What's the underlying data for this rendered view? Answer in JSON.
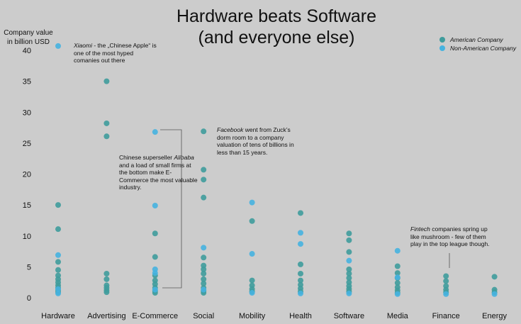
{
  "title_line1": "Hardware beats Software",
  "title_line2": "(and everyone else)",
  "ylabel_line1": "Company value",
  "ylabel_line2": "in billion USD",
  "legend": {
    "american": "American Company",
    "non_american": "Non-American Company",
    "american_color": "#3f9c9c",
    "non_american_color": "#46b3e0"
  },
  "annotations": {
    "xiaomi_name": "Xiaomi",
    "xiaomi_text": " - the „Chinese Apple“ is one of the most hyped comanies out there",
    "alibaba_pre": "Chinese superseller ",
    "alibaba_name": "Alibaba",
    "alibaba_text": " and a load of small firms at the bottom make E-Commerce the most valuable industry.",
    "facebook_name": "Facebook",
    "facebook_text": " went from Zuck’s dorm room to a company valuation of tens of billions in less than 15 years.",
    "fintech_name": "Fintech",
    "fintech_text": " companies spring up like mushroom - few of them play in the top league though."
  },
  "chart_data": {
    "type": "scatter",
    "title": "Hardware beats Software (and everyone else)",
    "ylabel": "Company value in billion USD",
    "xlabel": "",
    "ylim": [
      0,
      40
    ],
    "yticks": [
      0,
      5,
      10,
      15,
      20,
      25,
      30,
      35,
      40
    ],
    "grid": false,
    "legend_position": "top-right",
    "categories": [
      "Hardware",
      "Advertising",
      "E-Commerce",
      "Social",
      "Mobility",
      "Health",
      "Software",
      "Media",
      "Finance",
      "Energy"
    ],
    "series": [
      {
        "name": "American Company",
        "color": "#3f9c9c",
        "points": [
          {
            "x": "Hardware",
            "y": 15.0
          },
          {
            "x": "Hardware",
            "y": 11.1
          },
          {
            "x": "Hardware",
            "y": 5.8
          },
          {
            "x": "Hardware",
            "y": 4.5
          },
          {
            "x": "Hardware",
            "y": 3.6
          },
          {
            "x": "Hardware",
            "y": 3.0
          },
          {
            "x": "Hardware",
            "y": 2.5
          },
          {
            "x": "Hardware",
            "y": 2.0
          },
          {
            "x": "Hardware",
            "y": 1.6
          },
          {
            "x": "Hardware",
            "y": 1.2
          },
          {
            "x": "Hardware",
            "y": 0.9
          },
          {
            "x": "Advertising",
            "y": 35.0
          },
          {
            "x": "Advertising",
            "y": 28.2
          },
          {
            "x": "Advertising",
            "y": 26.1
          },
          {
            "x": "Advertising",
            "y": 3.9
          },
          {
            "x": "Advertising",
            "y": 3.0
          },
          {
            "x": "Advertising",
            "y": 2.0
          },
          {
            "x": "Advertising",
            "y": 1.6
          },
          {
            "x": "Advertising",
            "y": 1.2
          },
          {
            "x": "Advertising",
            "y": 0.9
          },
          {
            "x": "E-Commerce",
            "y": 10.4
          },
          {
            "x": "E-Commerce",
            "y": 6.6
          },
          {
            "x": "E-Commerce",
            "y": 3.6
          },
          {
            "x": "E-Commerce",
            "y": 2.8
          },
          {
            "x": "E-Commerce",
            "y": 2.2
          },
          {
            "x": "E-Commerce",
            "y": 1.6
          },
          {
            "x": "E-Commerce",
            "y": 1.1
          },
          {
            "x": "E-Commerce",
            "y": 0.8
          },
          {
            "x": "Social",
            "y": 26.9
          },
          {
            "x": "Social",
            "y": 20.7
          },
          {
            "x": "Social",
            "y": 19.1
          },
          {
            "x": "Social",
            "y": 16.2
          },
          {
            "x": "Social",
            "y": 6.5
          },
          {
            "x": "Social",
            "y": 5.2
          },
          {
            "x": "Social",
            "y": 4.6
          },
          {
            "x": "Social",
            "y": 3.9
          },
          {
            "x": "Social",
            "y": 3.0
          },
          {
            "x": "Social",
            "y": 2.3
          },
          {
            "x": "Social",
            "y": 1.6
          },
          {
            "x": "Social",
            "y": 1.1
          },
          {
            "x": "Social",
            "y": 0.8
          },
          {
            "x": "Mobility",
            "y": 12.4
          },
          {
            "x": "Mobility",
            "y": 2.8
          },
          {
            "x": "Mobility",
            "y": 2.0
          },
          {
            "x": "Mobility",
            "y": 1.4
          },
          {
            "x": "Mobility",
            "y": 1.0
          },
          {
            "x": "Health",
            "y": 13.7
          },
          {
            "x": "Health",
            "y": 5.4
          },
          {
            "x": "Health",
            "y": 3.9
          },
          {
            "x": "Health",
            "y": 2.8
          },
          {
            "x": "Health",
            "y": 2.1
          },
          {
            "x": "Health",
            "y": 1.5
          },
          {
            "x": "Health",
            "y": 1.0
          },
          {
            "x": "Software",
            "y": 10.4
          },
          {
            "x": "Software",
            "y": 9.3
          },
          {
            "x": "Software",
            "y": 7.4
          },
          {
            "x": "Software",
            "y": 4.6
          },
          {
            "x": "Software",
            "y": 3.9
          },
          {
            "x": "Software",
            "y": 3.2
          },
          {
            "x": "Software",
            "y": 2.5
          },
          {
            "x": "Software",
            "y": 1.9
          },
          {
            "x": "Software",
            "y": 1.4
          },
          {
            "x": "Software",
            "y": 1.0
          },
          {
            "x": "Media",
            "y": 5.1
          },
          {
            "x": "Media",
            "y": 4.0
          },
          {
            "x": "Media",
            "y": 3.2
          },
          {
            "x": "Media",
            "y": 2.4
          },
          {
            "x": "Media",
            "y": 1.7
          },
          {
            "x": "Media",
            "y": 1.2
          },
          {
            "x": "Media",
            "y": 0.8
          },
          {
            "x": "Finance",
            "y": 3.5
          },
          {
            "x": "Finance",
            "y": 2.7
          },
          {
            "x": "Finance",
            "y": 1.9
          },
          {
            "x": "Finance",
            "y": 1.3
          },
          {
            "x": "Finance",
            "y": 0.9
          },
          {
            "x": "Energy",
            "y": 3.4
          },
          {
            "x": "Energy",
            "y": 1.3
          },
          {
            "x": "Energy",
            "y": 0.9
          }
        ]
      },
      {
        "name": "Non-American Company",
        "color": "#46b3e0",
        "points": [
          {
            "x": "Hardware",
            "y": 40.7
          },
          {
            "x": "Hardware",
            "y": 6.9
          },
          {
            "x": "Hardware",
            "y": 1.4
          },
          {
            "x": "Hardware",
            "y": 0.7
          },
          {
            "x": "E-Commerce",
            "y": 26.8
          },
          {
            "x": "E-Commerce",
            "y": 14.9
          },
          {
            "x": "E-Commerce",
            "y": 4.6
          },
          {
            "x": "E-Commerce",
            "y": 4.0
          },
          {
            "x": "E-Commerce",
            "y": 1.3
          },
          {
            "x": "Social",
            "y": 8.1
          },
          {
            "x": "Social",
            "y": 1.3
          },
          {
            "x": "Mobility",
            "y": 15.4
          },
          {
            "x": "Mobility",
            "y": 7.1
          },
          {
            "x": "Mobility",
            "y": 0.8
          },
          {
            "x": "Health",
            "y": 10.5
          },
          {
            "x": "Health",
            "y": 8.7
          },
          {
            "x": "Health",
            "y": 0.7
          },
          {
            "x": "Software",
            "y": 6.0
          },
          {
            "x": "Software",
            "y": 0.7
          },
          {
            "x": "Media",
            "y": 7.6
          },
          {
            "x": "Media",
            "y": 3.3
          },
          {
            "x": "Media",
            "y": 0.6
          },
          {
            "x": "Finance",
            "y": 0.6
          },
          {
            "x": "Energy",
            "y": 0.6
          }
        ]
      }
    ]
  }
}
